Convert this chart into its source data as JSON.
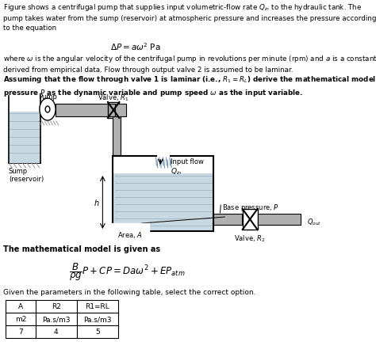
{
  "bg_color": "#ffffff",
  "title_text": "Figure shows a centrifugal pump that supplies input volumetric-flow rate $Q_{in}$ to the hydraulic tank. The\npump takes water from the sump (reservoir) at atmospheric pressure and increases the pressure according\nto the equation",
  "equation1": "$\\Delta P = a\\omega^2$ Pa",
  "para1": "where $\\omega$ is the angular velocity of the centrifugal pump in revolutions per minute (rpm) and $a$ is a constant\nderived from empirical data. Flow through output valve 2 is assumed to be laminar.",
  "para2": "Assuming that the flow through valve 1 is laminar (i.e., $R_1 = R_L$) derive the mathematical model with\npressure $P$ as the dynamic variable and pump speed $\\omega$ as the input variable.",
  "math_label": "The mathematical model is given as",
  "equation2": "$\\dfrac{B}{\\rho g}P + CP = Da\\omega^2 + EP_{atm}$",
  "table_label": "Given the parameters in the following table, select the correct option.",
  "table_headers": [
    "A",
    "R2",
    "R1=RL"
  ],
  "table_units": [
    "m2",
    "Pa.s/m3",
    "Pa.s/m3"
  ],
  "table_values": [
    "7",
    "4",
    "5"
  ],
  "gray": "#b0b0b0",
  "dgray": "#888888",
  "water": "#c8d8e0",
  "water_lines": "#9ab0c0"
}
